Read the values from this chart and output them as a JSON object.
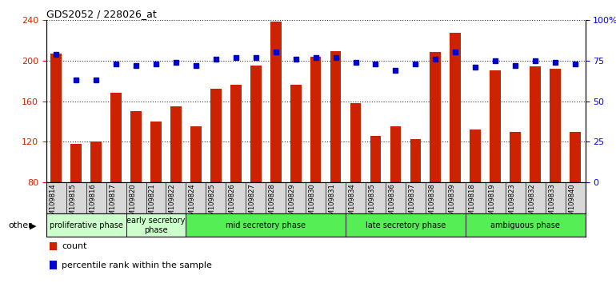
{
  "title": "GDS2052 / 228026_at",
  "samples": [
    "GSM109814",
    "GSM109815",
    "GSM109816",
    "GSM109817",
    "GSM109820",
    "GSM109821",
    "GSM109822",
    "GSM109824",
    "GSM109825",
    "GSM109826",
    "GSM109827",
    "GSM109828",
    "GSM109829",
    "GSM109830",
    "GSM109831",
    "GSM109834",
    "GSM109835",
    "GSM109836",
    "GSM109837",
    "GSM109838",
    "GSM109839",
    "GSM109818",
    "GSM109819",
    "GSM109823",
    "GSM109832",
    "GSM109833",
    "GSM109840"
  ],
  "bar_values": [
    207,
    118,
    120,
    168,
    150,
    140,
    155,
    135,
    172,
    176,
    195,
    238,
    176,
    204,
    209,
    158,
    126,
    135,
    123,
    208,
    227,
    132,
    190,
    130,
    194,
    192,
    130
  ],
  "percentile_values": [
    79,
    63,
    63,
    73,
    72,
    73,
    74,
    72,
    76,
    77,
    77,
    80,
    76,
    77,
    77,
    74,
    73,
    69,
    73,
    76,
    80,
    71,
    75,
    72,
    75,
    74,
    73
  ],
  "bar_color": "#cc2200",
  "dot_color": "#0000cc",
  "bar_bottom": 80,
  "ylim_left": [
    80,
    240
  ],
  "ylim_right": [
    0,
    100
  ],
  "yticks_left": [
    80,
    120,
    160,
    200,
    240
  ],
  "yticks_right": [
    0,
    25,
    50,
    75,
    100
  ],
  "ytick_labels_right": [
    "0",
    "25",
    "50",
    "75",
    "100%"
  ],
  "phase_boundaries": [
    {
      "label": "proliferative phase",
      "start": 0,
      "end": 4,
      "color": "#ccffcc"
    },
    {
      "label": "early secretory\nphase",
      "start": 4,
      "end": 7,
      "color": "#ccffcc"
    },
    {
      "label": "mid secretory phase",
      "start": 7,
      "end": 15,
      "color": "#55ee55"
    },
    {
      "label": "late secretory phase",
      "start": 15,
      "end": 21,
      "color": "#55ee55"
    },
    {
      "label": "ambiguous phase",
      "start": 21,
      "end": 27,
      "color": "#55ee55"
    }
  ],
  "other_label": "other",
  "legend_count": "count",
  "legend_percentile": "percentile rank within the sample",
  "bg_color": "#ffffff"
}
